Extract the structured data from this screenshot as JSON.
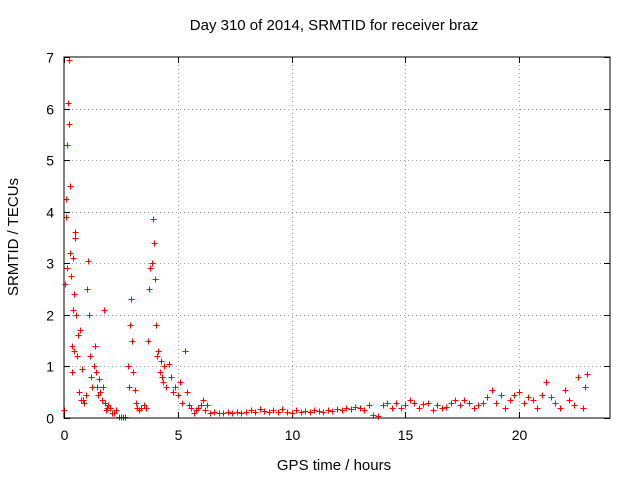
{
  "chart_data": {
    "type": "scatter",
    "title": "Day 310 of 2014, SRMTID for receiver braz",
    "xlabel": "GPS time / hours",
    "ylabel": "SRMTID / TECUs",
    "xlim": [
      0,
      24
    ],
    "ylim": [
      0,
      7
    ],
    "grid": true,
    "marker": "+",
    "color": "#ff0000",
    "x_ticks": [
      0,
      5,
      10,
      15,
      20
    ],
    "y_ticks": [
      0,
      1,
      2,
      3,
      4,
      5,
      6,
      7
    ],
    "x_tick_labels": [
      "0",
      "5",
      "10",
      "15",
      "20"
    ],
    "y_tick_labels": [
      "0",
      "1",
      "2",
      "3",
      "4",
      "5",
      "6",
      "7"
    ],
    "series": [
      {
        "name": "SRMTID",
        "points": [
          [
            0.02,
            0.15
          ],
          [
            0.05,
            2.6
          ],
          [
            0.08,
            3.9
          ],
          [
            0.1,
            4.25
          ],
          [
            0.12,
            2.9
          ],
          [
            0.15,
            5.3
          ],
          [
            0.17,
            6.1
          ],
          [
            0.2,
            6.95
          ],
          [
            0.22,
            5.7
          ],
          [
            0.25,
            4.5
          ],
          [
            0.28,
            3.2
          ],
          [
            0.3,
            2.75
          ],
          [
            0.33,
            1.4
          ],
          [
            0.35,
            0.9
          ],
          [
            0.38,
            2.1
          ],
          [
            0.4,
            3.1
          ],
          [
            0.43,
            2.4
          ],
          [
            0.45,
            1.3
          ],
          [
            0.48,
            3.6
          ],
          [
            0.5,
            3.5
          ],
          [
            0.52,
            2.0
          ],
          [
            0.55,
            1.2
          ],
          [
            0.6,
            1.6
          ],
          [
            0.65,
            0.5
          ],
          [
            0.7,
            1.7
          ],
          [
            0.75,
            0.35
          ],
          [
            0.8,
            0.95
          ],
          [
            0.85,
            0.35
          ],
          [
            0.9,
            0.3
          ],
          [
            0.95,
            0.45
          ],
          [
            1.0,
            2.5
          ],
          [
            1.05,
            3.05
          ],
          [
            1.1,
            2.0
          ],
          [
            1.15,
            1.2
          ],
          [
            1.2,
            0.8
          ],
          [
            1.25,
            0.6
          ],
          [
            1.3,
            1.0
          ],
          [
            1.35,
            1.4
          ],
          [
            1.4,
            0.9
          ],
          [
            1.45,
            0.6
          ],
          [
            1.5,
            0.45
          ],
          [
            1.55,
            0.75
          ],
          [
            1.6,
            0.5
          ],
          [
            1.65,
            0.35
          ],
          [
            1.7,
            0.6
          ],
          [
            1.75,
            2.1
          ],
          [
            1.8,
            0.3
          ],
          [
            1.85,
            0.15
          ],
          [
            1.9,
            0.2
          ],
          [
            1.95,
            0.25
          ],
          [
            2.0,
            0.2
          ],
          [
            2.1,
            0.1
          ],
          [
            2.2,
            0.1
          ],
          [
            2.3,
            0.15
          ],
          [
            2.4,
            0.02
          ],
          [
            2.5,
            0.02
          ],
          [
            2.6,
            0.02
          ],
          [
            2.7,
            0.02
          ],
          [
            2.8,
            1.0
          ],
          [
            2.85,
            0.6
          ],
          [
            2.9,
            1.8
          ],
          [
            2.95,
            2.3
          ],
          [
            3.0,
            1.5
          ],
          [
            3.05,
            0.9
          ],
          [
            3.1,
            0.55
          ],
          [
            3.15,
            0.3
          ],
          [
            3.2,
            0.2
          ],
          [
            3.3,
            0.15
          ],
          [
            3.4,
            0.2
          ],
          [
            3.5,
            0.25
          ],
          [
            3.6,
            0.2
          ],
          [
            3.7,
            1.5
          ],
          [
            3.75,
            2.5
          ],
          [
            3.8,
            2.9
          ],
          [
            3.85,
            3.0
          ],
          [
            3.9,
            3.85
          ],
          [
            3.95,
            3.4
          ],
          [
            4.0,
            2.7
          ],
          [
            4.05,
            1.8
          ],
          [
            4.1,
            1.2
          ],
          [
            4.15,
            1.3
          ],
          [
            4.2,
            0.9
          ],
          [
            4.25,
            1.1
          ],
          [
            4.3,
            0.8
          ],
          [
            4.35,
            0.7
          ],
          [
            4.4,
            1.0
          ],
          [
            4.5,
            0.6
          ],
          [
            4.6,
            1.05
          ],
          [
            4.7,
            0.8
          ],
          [
            4.8,
            0.5
          ],
          [
            4.9,
            0.6
          ],
          [
            5.0,
            0.45
          ],
          [
            5.1,
            0.7
          ],
          [
            5.2,
            0.3
          ],
          [
            5.3,
            1.3
          ],
          [
            5.4,
            0.5
          ],
          [
            5.5,
            0.25
          ],
          [
            5.6,
            0.2
          ],
          [
            5.7,
            0.1
          ],
          [
            5.8,
            0.15
          ],
          [
            5.9,
            0.2
          ],
          [
            6.0,
            0.25
          ],
          [
            6.1,
            0.35
          ],
          [
            6.2,
            0.15
          ],
          [
            6.3,
            0.25
          ],
          [
            6.4,
            0.1
          ],
          [
            6.6,
            0.12
          ],
          [
            6.8,
            0.1
          ],
          [
            7.0,
            0.1
          ],
          [
            7.2,
            0.12
          ],
          [
            7.4,
            0.1
          ],
          [
            7.6,
            0.12
          ],
          [
            7.8,
            0.1
          ],
          [
            8.0,
            0.12
          ],
          [
            8.2,
            0.15
          ],
          [
            8.4,
            0.12
          ],
          [
            8.6,
            0.18
          ],
          [
            8.8,
            0.14
          ],
          [
            9.0,
            0.12
          ],
          [
            9.2,
            0.15
          ],
          [
            9.4,
            0.12
          ],
          [
            9.6,
            0.18
          ],
          [
            9.8,
            0.12
          ],
          [
            10.0,
            0.1
          ],
          [
            10.2,
            0.15
          ],
          [
            10.4,
            0.12
          ],
          [
            10.6,
            0.14
          ],
          [
            10.8,
            0.12
          ],
          [
            11.0,
            0.15
          ],
          [
            11.2,
            0.13
          ],
          [
            11.4,
            0.12
          ],
          [
            11.6,
            0.16
          ],
          [
            11.8,
            0.14
          ],
          [
            12.0,
            0.18
          ],
          [
            12.2,
            0.16
          ],
          [
            12.4,
            0.2
          ],
          [
            12.6,
            0.18
          ],
          [
            12.8,
            0.22
          ],
          [
            13.0,
            0.2
          ],
          [
            13.2,
            0.15
          ],
          [
            13.4,
            0.25
          ],
          [
            13.6,
            0.05
          ],
          [
            13.8,
            0.03
          ],
          [
            14.0,
            0.25
          ],
          [
            14.2,
            0.3
          ],
          [
            14.4,
            0.2
          ],
          [
            14.6,
            0.3
          ],
          [
            14.8,
            0.2
          ],
          [
            15.0,
            0.25
          ],
          [
            15.2,
            0.35
          ],
          [
            15.4,
            0.3
          ],
          [
            15.6,
            0.2
          ],
          [
            15.8,
            0.28
          ],
          [
            16.0,
            0.3
          ],
          [
            16.2,
            0.15
          ],
          [
            16.4,
            0.25
          ],
          [
            16.6,
            0.2
          ],
          [
            16.8,
            0.22
          ],
          [
            17.0,
            0.3
          ],
          [
            17.2,
            0.35
          ],
          [
            17.4,
            0.25
          ],
          [
            17.6,
            0.35
          ],
          [
            17.8,
            0.3
          ],
          [
            18.0,
            0.2
          ],
          [
            18.2,
            0.25
          ],
          [
            18.4,
            0.3
          ],
          [
            18.6,
            0.4
          ],
          [
            18.8,
            0.55
          ],
          [
            19.0,
            0.3
          ],
          [
            19.2,
            0.45
          ],
          [
            19.4,
            0.2
          ],
          [
            19.6,
            0.35
          ],
          [
            19.8,
            0.45
          ],
          [
            20.0,
            0.5
          ],
          [
            20.2,
            0.3
          ],
          [
            20.4,
            0.4
          ],
          [
            20.6,
            0.35
          ],
          [
            20.8,
            0.2
          ],
          [
            21.0,
            0.45
          ],
          [
            21.2,
            0.7
          ],
          [
            21.4,
            0.4
          ],
          [
            21.6,
            0.3
          ],
          [
            21.8,
            0.2
          ],
          [
            22.0,
            0.55
          ],
          [
            22.2,
            0.35
          ],
          [
            22.4,
            0.25
          ],
          [
            22.6,
            0.8
          ],
          [
            22.8,
            0.2
          ],
          [
            22.9,
            0.6
          ],
          [
            23.0,
            0.85
          ]
        ]
      }
    ]
  }
}
